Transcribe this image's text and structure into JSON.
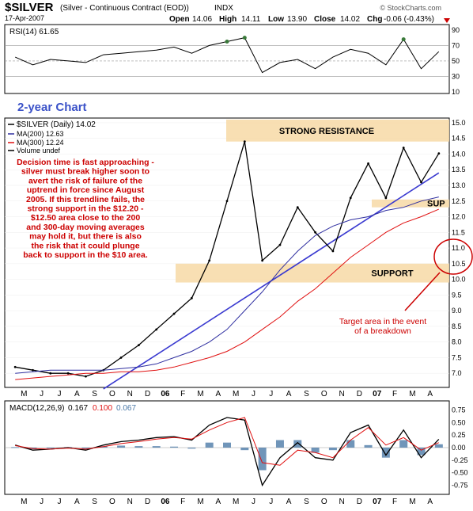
{
  "header": {
    "symbol": "$SILVER",
    "description": "(Silver - Continuous Contract (EOD))",
    "exchange": "INDX",
    "date": "17-Apr-2007",
    "ohlc": {
      "open_label": "Open",
      "open": "14.06",
      "high_label": "High",
      "high": "14.11",
      "low_label": "Low",
      "low": "13.90",
      "close_label": "Close",
      "close": "14.02",
      "chg_label": "Chg",
      "chg": "-0.06 (-0.43%)"
    },
    "copyright": "© StockCharts.com"
  },
  "colors": {
    "price": "#000000",
    "ma200": "#2f2fa0",
    "ma300": "#e01010",
    "trend": "#3a3ad0",
    "band": "#f7d9a6",
    "annot_red": "#cc0000",
    "chart_title": "#3b52c8"
  },
  "chart_data": [
    {
      "type": "line",
      "panel": "rsi",
      "legend": "RSI(14) 61.65",
      "yticks": [
        10,
        30,
        50,
        70,
        90
      ],
      "ylim": [
        10,
        95
      ],
      "x": [
        "2005-04",
        "2005-05",
        "2005-06",
        "2005-07",
        "2005-08",
        "2005-09",
        "2005-10",
        "2005-11",
        "2005-12",
        "2006-01",
        "2006-02",
        "2006-03",
        "2006-04",
        "2006-05",
        "2006-06",
        "2006-07",
        "2006-08",
        "2006-09",
        "2006-10",
        "2006-11",
        "2006-12",
        "2007-01",
        "2007-02",
        "2007-03",
        "2007-04"
      ],
      "values": [
        55,
        45,
        52,
        50,
        48,
        58,
        60,
        62,
        64,
        68,
        60,
        70,
        75,
        80,
        35,
        48,
        52,
        40,
        55,
        65,
        60,
        45,
        78,
        40,
        62
      ]
    },
    {
      "type": "line",
      "panel": "price",
      "legend": [
        "$SILVER (Daily) 14.02",
        "MA(200) 12.63",
        "MA(300) 12.24",
        "Volume undef"
      ],
      "yticks": [
        7.0,
        7.5,
        8.0,
        8.5,
        9.0,
        9.5,
        10.0,
        10.5,
        11.0,
        11.5,
        12.0,
        12.5,
        13.0,
        13.5,
        14.0,
        14.5,
        15.0
      ],
      "ylim": [
        6.6,
        15.1
      ],
      "x": [
        "2005-04",
        "2005-05",
        "2005-06",
        "2005-07",
        "2005-08",
        "2005-09",
        "2005-10",
        "2005-11",
        "2005-12",
        "2006-01",
        "2006-02",
        "2006-03",
        "2006-04",
        "2006-05",
        "2006-06",
        "2006-07",
        "2006-08",
        "2006-09",
        "2006-10",
        "2006-11",
        "2006-12",
        "2007-01",
        "2007-02",
        "2007-03",
        "2007-04"
      ],
      "series": [
        {
          "name": "$SILVER",
          "values": [
            7.2,
            7.1,
            7.0,
            7.0,
            6.9,
            7.1,
            7.5,
            7.9,
            8.4,
            8.9,
            9.4,
            10.6,
            12.5,
            14.4,
            10.6,
            11.1,
            12.3,
            11.5,
            10.9,
            12.6,
            13.7,
            12.6,
            14.2,
            13.1,
            14.02
          ]
        },
        {
          "name": "MA(200)",
          "values": [
            7.0,
            7.05,
            7.1,
            7.1,
            7.1,
            7.1,
            7.15,
            7.2,
            7.3,
            7.5,
            7.7,
            8.0,
            8.4,
            9.0,
            9.6,
            10.3,
            10.9,
            11.4,
            11.7,
            11.9,
            12.0,
            12.2,
            12.3,
            12.5,
            12.63
          ]
        },
        {
          "name": "MA(300)",
          "values": [
            6.8,
            6.85,
            6.9,
            6.95,
            7.0,
            7.0,
            7.05,
            7.05,
            7.1,
            7.2,
            7.35,
            7.5,
            7.7,
            8.0,
            8.4,
            8.8,
            9.3,
            9.7,
            10.2,
            10.7,
            11.1,
            11.5,
            11.8,
            12.0,
            12.24
          ]
        }
      ],
      "trendline": {
        "from": [
          "2005-09",
          6.5
        ],
        "to": [
          "2007-04",
          13.4
        ]
      },
      "bands": [
        {
          "label": "STRONG RESISTANCE",
          "y": [
            14.4,
            15.1
          ]
        },
        {
          "label": "SUPPORT",
          "y": [
            9.9,
            10.5
          ]
        },
        {
          "label": "SUP",
          "y": [
            12.3,
            12.55
          ]
        }
      ],
      "annotations": {
        "chart_title": "2-year Chart",
        "commentary": [
          "Decision time is fast approaching -",
          "silver must break higher soon to",
          "avert the risk of failure of the",
          "uptrend in force since August",
          "2005. If this trendline fails, the",
          "strong support in the $12.20 -",
          "$12.50 area close to the 200",
          "and 300-day moving averages",
          "may hold it, but there is also",
          "the risk that it could plunge",
          "back to support in the $10 area."
        ],
        "target_text": [
          "Target area in the event",
          "of a breakdown"
        ]
      }
    },
    {
      "type": "line",
      "panel": "macd",
      "legend": {
        "label": "MACD(12,26,9)",
        "macd": "0.167",
        "signal": "0.100",
        "hist": "0.067"
      },
      "yticks": [
        -0.75,
        -0.5,
        -0.25,
        0.0,
        0.25,
        0.5,
        0.75
      ],
      "ylim": [
        -0.9,
        0.9
      ],
      "x": [
        "2005-04",
        "2005-05",
        "2005-06",
        "2005-07",
        "2005-08",
        "2005-09",
        "2005-10",
        "2005-11",
        "2005-12",
        "2006-01",
        "2006-02",
        "2006-03",
        "2006-04",
        "2006-05",
        "2006-06",
        "2006-07",
        "2006-08",
        "2006-09",
        "2006-10",
        "2006-11",
        "2006-12",
        "2007-01",
        "2007-02",
        "2007-03",
        "2007-04"
      ],
      "series": [
        {
          "name": "MACD",
          "values": [
            0.05,
            -0.05,
            -0.03,
            0.0,
            -0.05,
            0.05,
            0.12,
            0.15,
            0.2,
            0.22,
            0.15,
            0.45,
            0.6,
            0.55,
            -0.75,
            -0.2,
            0.1,
            -0.2,
            -0.25,
            0.3,
            0.45,
            -0.15,
            0.35,
            -0.2,
            0.167
          ]
        },
        {
          "name": "Signal",
          "values": [
            0.04,
            -0.02,
            -0.03,
            -0.01,
            -0.03,
            0.02,
            0.08,
            0.12,
            0.17,
            0.2,
            0.17,
            0.35,
            0.5,
            0.6,
            -0.3,
            -0.35,
            -0.05,
            -0.1,
            -0.2,
            0.15,
            0.4,
            0.05,
            0.2,
            -0.05,
            0.1
          ]
        }
      ]
    }
  ],
  "x_axis": {
    "ticks": [
      "M",
      "J",
      "J",
      "A",
      "S",
      "O",
      "N",
      "D",
      "06",
      "F",
      "M",
      "A",
      "M",
      "J",
      "J",
      "A",
      "S",
      "O",
      "N",
      "D",
      "07",
      "F",
      "M",
      "A"
    ]
  }
}
